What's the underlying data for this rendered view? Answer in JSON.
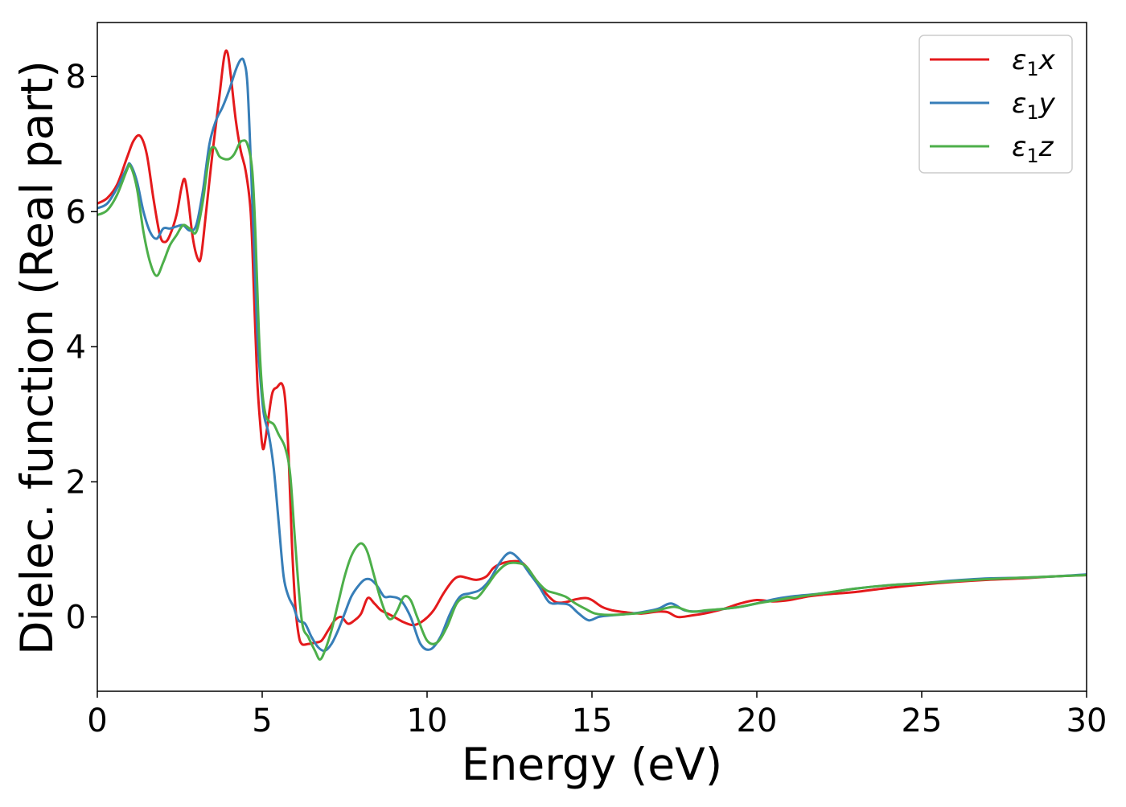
{
  "chart_data": {
    "type": "line",
    "title": "",
    "xlabel": "Energy (eV)",
    "ylabel": "Dielec. function (Real part)",
    "xlim": [
      0,
      30
    ],
    "ylim": [
      -1.1,
      8.8
    ],
    "xticks": [
      0,
      5,
      10,
      15,
      20,
      25,
      30
    ],
    "yticks": [
      0,
      2,
      4,
      6,
      8
    ],
    "grid": false,
    "legend_position": "top-right",
    "series": [
      {
        "name": "ε₁x",
        "legend_base": "ε",
        "legend_sub": "1",
        "legend_var": "x",
        "color": "#e41a1c",
        "x": [
          0,
          0.3,
          0.6,
          0.9,
          1.1,
          1.3,
          1.5,
          1.7,
          1.9,
          2.05,
          2.2,
          2.4,
          2.55,
          2.65,
          2.75,
          2.9,
          3.05,
          3.15,
          3.3,
          3.5,
          3.7,
          3.85,
          3.95,
          4.05,
          4.2,
          4.35,
          4.5,
          4.65,
          4.75,
          4.85,
          4.95,
          5.0,
          5.05,
          5.15,
          5.3,
          5.45,
          5.6,
          5.7,
          5.8,
          5.9,
          6.0,
          6.1,
          6.2,
          6.4,
          6.6,
          6.8,
          7.0,
          7.2,
          7.4,
          7.6,
          7.8,
          8.0,
          8.2,
          8.4,
          8.6,
          8.8,
          9.0,
          9.3,
          9.6,
          9.9,
          10.2,
          10.5,
          10.8,
          11.0,
          11.2,
          11.5,
          11.8,
          12.0,
          12.2,
          12.5,
          12.8,
          13.0,
          13.3,
          13.6,
          13.9,
          14.2,
          14.5,
          14.8,
          15.0,
          15.3,
          15.6,
          16.0,
          16.5,
          17.0,
          17.3,
          17.6,
          18.0,
          18.5,
          19.0,
          19.5,
          20.0,
          20.5,
          21.0,
          21.5,
          22.0,
          22.5,
          23.0,
          24.0,
          25.0,
          26.0,
          27.0,
          28.0,
          29.0,
          30.0
        ],
        "values": [
          6.12,
          6.2,
          6.4,
          6.8,
          7.05,
          7.12,
          6.85,
          6.2,
          5.65,
          5.55,
          5.65,
          5.95,
          6.35,
          6.48,
          6.2,
          5.6,
          5.3,
          5.35,
          6.0,
          6.9,
          7.7,
          8.3,
          8.35,
          8.0,
          7.35,
          6.9,
          6.6,
          6.0,
          4.8,
          3.5,
          2.8,
          2.55,
          2.5,
          2.8,
          3.3,
          3.4,
          3.45,
          3.2,
          2.4,
          1.1,
          0.2,
          -0.25,
          -0.4,
          -0.4,
          -0.38,
          -0.35,
          -0.2,
          -0.05,
          0.0,
          -0.1,
          -0.05,
          0.05,
          0.28,
          0.2,
          0.1,
          0.05,
          0.0,
          -0.08,
          -0.12,
          -0.05,
          0.1,
          0.35,
          0.55,
          0.6,
          0.58,
          0.55,
          0.6,
          0.72,
          0.78,
          0.82,
          0.82,
          0.75,
          0.55,
          0.35,
          0.22,
          0.22,
          0.26,
          0.28,
          0.25,
          0.15,
          0.1,
          0.07,
          0.05,
          0.08,
          0.07,
          0.0,
          0.02,
          0.06,
          0.12,
          0.2,
          0.25,
          0.23,
          0.25,
          0.3,
          0.33,
          0.35,
          0.37,
          0.43,
          0.48,
          0.52,
          0.55,
          0.57,
          0.6,
          0.62
        ]
      },
      {
        "name": "ε₁y",
        "legend_base": "ε",
        "legend_sub": "1",
        "legend_var": "y",
        "color": "#377eb8",
        "x": [
          0,
          0.3,
          0.6,
          0.9,
          1.0,
          1.2,
          1.4,
          1.6,
          1.8,
          2.0,
          2.2,
          2.4,
          2.6,
          2.8,
          3.0,
          3.2,
          3.4,
          3.6,
          3.8,
          4.0,
          4.2,
          4.35,
          4.45,
          4.55,
          4.65,
          4.75,
          4.85,
          4.95,
          5.05,
          5.2,
          5.35,
          5.5,
          5.65,
          5.8,
          5.95,
          6.1,
          6.3,
          6.5,
          6.7,
          6.9,
          7.1,
          7.3,
          7.5,
          7.7,
          7.9,
          8.1,
          8.3,
          8.5,
          8.7,
          8.9,
          9.2,
          9.5,
          9.8,
          10.1,
          10.4,
          10.7,
          11.0,
          11.3,
          11.6,
          11.9,
          12.2,
          12.5,
          12.8,
          13.1,
          13.4,
          13.7,
          14.0,
          14.3,
          14.6,
          14.9,
          15.2,
          15.5,
          16.0,
          16.5,
          17.0,
          17.4,
          17.8,
          18.2,
          18.6,
          19.0,
          19.5,
          20.0,
          20.5,
          21.0,
          22.0,
          23.0,
          24.0,
          25.0,
          26.0,
          27.0,
          28.0,
          29.0,
          30.0
        ],
        "values": [
          6.05,
          6.12,
          6.35,
          6.65,
          6.7,
          6.45,
          6.0,
          5.7,
          5.6,
          5.75,
          5.75,
          5.78,
          5.8,
          5.72,
          5.8,
          6.3,
          7.0,
          7.35,
          7.55,
          7.8,
          8.1,
          8.25,
          8.22,
          7.9,
          6.8,
          5.5,
          4.2,
          3.5,
          3.0,
          2.7,
          2.2,
          1.4,
          0.6,
          0.3,
          0.15,
          -0.05,
          -0.1,
          -0.3,
          -0.45,
          -0.5,
          -0.4,
          -0.2,
          0.05,
          0.3,
          0.45,
          0.55,
          0.55,
          0.45,
          0.3,
          0.3,
          0.25,
          0.0,
          -0.4,
          -0.48,
          -0.3,
          0.05,
          0.3,
          0.35,
          0.4,
          0.55,
          0.8,
          0.95,
          0.85,
          0.65,
          0.45,
          0.22,
          0.2,
          0.18,
          0.05,
          -0.05,
          0.0,
          0.02,
          0.04,
          0.07,
          0.12,
          0.2,
          0.1,
          0.08,
          0.1,
          0.12,
          0.15,
          0.2,
          0.26,
          0.3,
          0.35,
          0.42,
          0.47,
          0.5,
          0.54,
          0.57,
          0.58,
          0.6,
          0.63
        ]
      },
      {
        "name": "ε₁z",
        "legend_base": "ε",
        "legend_sub": "1",
        "legend_var": "z",
        "color": "#4daf4a",
        "x": [
          0,
          0.3,
          0.6,
          0.9,
          1.0,
          1.2,
          1.4,
          1.6,
          1.8,
          2.0,
          2.2,
          2.4,
          2.6,
          2.8,
          3.0,
          3.2,
          3.4,
          3.55,
          3.7,
          3.85,
          4.0,
          4.15,
          4.3,
          4.4,
          4.55,
          4.7,
          4.8,
          4.9,
          5.0,
          5.1,
          5.2,
          5.35,
          5.5,
          5.7,
          5.85,
          6.0,
          6.2,
          6.4,
          6.6,
          6.75,
          6.9,
          7.1,
          7.3,
          7.5,
          7.7,
          7.9,
          8.05,
          8.2,
          8.4,
          8.6,
          8.8,
          8.95,
          9.1,
          9.3,
          9.5,
          9.7,
          10.0,
          10.3,
          10.6,
          10.9,
          11.2,
          11.5,
          11.8,
          12.1,
          12.4,
          12.7,
          13.0,
          13.3,
          13.6,
          13.9,
          14.2,
          14.5,
          14.8,
          15.1,
          15.5,
          16.0,
          16.5,
          17.0,
          17.5,
          18.0,
          18.5,
          19.0,
          19.5,
          20.0,
          20.5,
          21.0,
          22.0,
          23.0,
          24.0,
          25.0,
          26.0,
          27.0,
          28.0,
          29.0,
          30.0
        ],
        "values": [
          5.95,
          6.02,
          6.25,
          6.62,
          6.68,
          6.35,
          5.7,
          5.25,
          5.05,
          5.25,
          5.5,
          5.65,
          5.8,
          5.75,
          5.7,
          6.15,
          6.85,
          6.95,
          6.82,
          6.78,
          6.78,
          6.85,
          7.0,
          7.05,
          7.0,
          6.6,
          5.6,
          4.2,
          3.35,
          3.0,
          2.9,
          2.85,
          2.7,
          2.5,
          2.1,
          1.1,
          -0.05,
          -0.3,
          -0.5,
          -0.63,
          -0.5,
          -0.2,
          0.2,
          0.6,
          0.9,
          1.06,
          1.08,
          0.95,
          0.6,
          0.25,
          0.0,
          -0.02,
          0.1,
          0.3,
          0.25,
          0.0,
          -0.35,
          -0.38,
          -0.15,
          0.2,
          0.3,
          0.28,
          0.45,
          0.65,
          0.78,
          0.8,
          0.75,
          0.55,
          0.4,
          0.35,
          0.3,
          0.2,
          0.12,
          0.05,
          0.03,
          0.04,
          0.06,
          0.1,
          0.15,
          0.08,
          0.1,
          0.12,
          0.15,
          0.2,
          0.24,
          0.28,
          0.35,
          0.42,
          0.47,
          0.5,
          0.53,
          0.56,
          0.58,
          0.6,
          0.62
        ]
      }
    ]
  }
}
